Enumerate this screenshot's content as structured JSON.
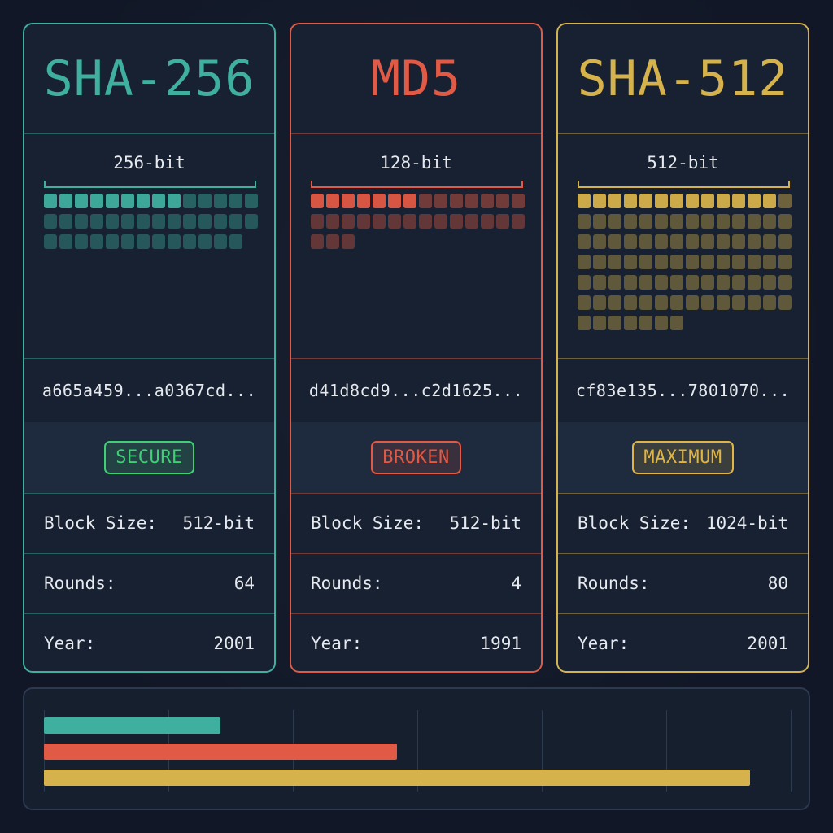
{
  "cards": [
    {
      "name": "SHA-256",
      "color": "#3fb0a0",
      "bits_label": "256-bit",
      "bright_cells": 9,
      "filled_cells": 41,
      "hash_preview": "a665a459...a0367cd...",
      "status": "SECURE",
      "status_color": "#3fcf74",
      "block_size_label": "Block Size:",
      "block_size": "512-bit",
      "rounds_label": "Rounds:",
      "rounds": "64",
      "year_label": "Year:",
      "year": "2001"
    },
    {
      "name": "MD5",
      "color": "#e05a45",
      "bits_label": "128-bit",
      "bright_cells": 7,
      "filled_cells": 31,
      "hash_preview": "d41d8cd9...c2d1625...",
      "status": "BROKEN",
      "status_color": "#e05a45",
      "block_size_label": "Block Size:",
      "block_size": "512-bit",
      "rounds_label": "Rounds:",
      "rounds": "4",
      "year_label": "Year:",
      "year": "1991"
    },
    {
      "name": "SHA-512",
      "color": "#d6b24c",
      "bits_label": "512-bit",
      "bright_cells": 13,
      "filled_cells": 91,
      "hash_preview": "cf83e135...7801070...",
      "status": "MAXIMUM",
      "status_color": "#e0b544",
      "block_size_label": "Block Size:",
      "block_size": "1024-bit",
      "rounds_label": "Rounds:",
      "rounds": "80",
      "year_label": "Year:",
      "year": "2001"
    }
  ],
  "comparison_bars": [
    {
      "color": "#3fb0a0",
      "value": 256
    },
    {
      "color": "#e05a45",
      "value": 512
    },
    {
      "color": "#d6b24c",
      "value": 1024
    }
  ],
  "comparison_max": 1024
}
